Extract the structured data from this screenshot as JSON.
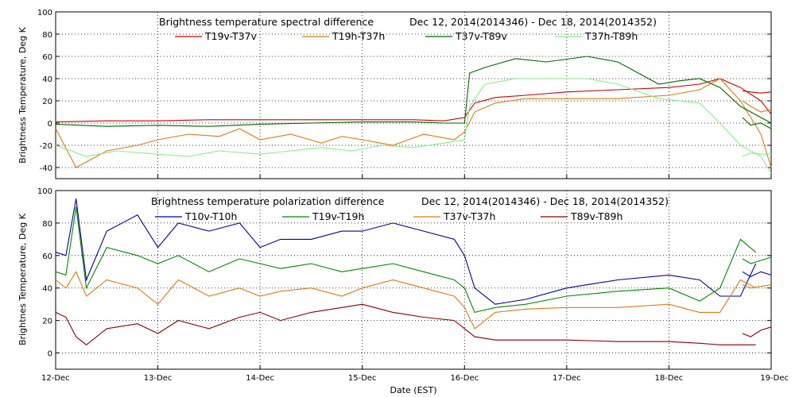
{
  "chart_data": [
    {
      "type": "line",
      "title": "Brightness temperature spectral difference",
      "date_range": "Dec 12, 2014(2014346)  - Dec 18, 2014(2014352)",
      "ylabel": "Brightness Temperature, Deg K",
      "xlabel": "",
      "xlim": [
        0,
        7
      ],
      "ylim": [
        -50,
        100
      ],
      "yticks": [
        -40,
        -20,
        0,
        20,
        40,
        60,
        80,
        100
      ],
      "grid": true,
      "legend_position": "top",
      "series": [
        {
          "name": "T19v-T37v",
          "color": "#cc0000",
          "x": [
            0,
            0.5,
            1,
            1.5,
            2,
            2.5,
            3,
            3.5,
            3.8,
            4.0,
            4.1,
            4.3,
            4.6,
            5.0,
            5.5,
            6.0,
            6.3,
            6.5,
            6.7,
            6.9,
            7.0
          ],
          "y": [
            1,
            2,
            2,
            3,
            3,
            3,
            3,
            3,
            2,
            5,
            18,
            23,
            25,
            28,
            30,
            32,
            35,
            40,
            32,
            20,
            8
          ],
          "x2": [
            6.72,
            6.8,
            6.9,
            7.0
          ],
          "y2": [
            29,
            28,
            27,
            28
          ]
        },
        {
          "name": "T19h-T37h",
          "color": "#e07a10",
          "x": [
            0,
            0.2,
            0.5,
            0.8,
            1,
            1.3,
            1.6,
            1.8,
            2,
            2.3,
            2.6,
            2.8,
            3.0,
            3.3,
            3.6,
            3.9,
            4.0,
            4.1,
            4.3,
            4.6,
            5.0,
            5.5,
            6.0,
            6.3,
            6.5,
            6.7,
            6.9,
            7.0
          ],
          "y": [
            -5,
            -40,
            -25,
            -20,
            -15,
            -10,
            -12,
            -5,
            -15,
            -10,
            -18,
            -12,
            -15,
            -20,
            -10,
            -15,
            -8,
            10,
            18,
            22,
            22,
            22,
            25,
            30,
            40,
            20,
            -10,
            -40
          ],
          "x2": [
            6.72,
            6.8,
            6.9,
            7.0
          ],
          "y2": [
            20,
            15,
            10,
            12
          ]
        },
        {
          "name": "T37v-T89v",
          "color": "#006600",
          "x": [
            0,
            0.5,
            1,
            1.5,
            2,
            2.5,
            3,
            3.5,
            3.8,
            4.0,
            4.05,
            4.2,
            4.5,
            4.8,
            5.2,
            5.5,
            5.9,
            6.1,
            6.3,
            6.5,
            6.7,
            6.9,
            7.0
          ],
          "y": [
            -1,
            -3,
            -2,
            -3,
            -1,
            0,
            1,
            1,
            0,
            0,
            45,
            50,
            58,
            55,
            60,
            55,
            35,
            38,
            40,
            32,
            15,
            5,
            0
          ],
          "x2": [
            6.72,
            6.8,
            6.9,
            7.0
          ],
          "y2": [
            5,
            -2,
            0,
            -5
          ]
        },
        {
          "name": "T37h-T89h",
          "color": "#88ee88",
          "x": [
            0,
            0.3,
            0.6,
            1.0,
            1.3,
            1.6,
            2.0,
            2.3,
            2.6,
            2.9,
            3.2,
            3.5,
            3.8,
            4.0,
            4.05,
            4.2,
            4.5,
            4.8,
            5.2,
            5.5,
            5.9,
            6.1,
            6.3,
            6.5,
            6.7,
            6.9,
            7.0
          ],
          "y": [
            -20,
            -30,
            -25,
            -28,
            -30,
            -25,
            -28,
            -25,
            -22,
            -25,
            -20,
            -22,
            -18,
            -15,
            15,
            35,
            40,
            40,
            40,
            35,
            22,
            20,
            18,
            0,
            -20,
            -30,
            -45
          ],
          "x2": [
            6.72,
            6.8,
            6.9,
            7.0
          ],
          "y2": [
            -30,
            -27,
            -28,
            -28
          ]
        }
      ]
    },
    {
      "type": "line",
      "title": "Brightness temperature polarization difference",
      "date_range": "Dec 12, 2014(2014346)  - Dec 18, 2014(2014352)",
      "ylabel": "Brightnes Temperature, Deg K",
      "xlabel": "Date (EST)",
      "xlim": [
        0,
        7
      ],
      "ylim": [
        -10,
        100
      ],
      "yticks": [
        0,
        20,
        40,
        60,
        80,
        100
      ],
      "xticks": [
        "12-Dec",
        "13-Dec",
        "14-Dec",
        "15-Dec",
        "16-Dec",
        "17-Dec",
        "18-Dec",
        "19-Dec"
      ],
      "grid": true,
      "legend_position": "top",
      "series": [
        {
          "name": "T10v-T10h",
          "color": "#000099",
          "x": [
            0,
            0.1,
            0.2,
            0.3,
            0.5,
            0.8,
            1.0,
            1.2,
            1.5,
            1.8,
            2.0,
            2.2,
            2.5,
            2.8,
            3.0,
            3.3,
            3.6,
            3.9,
            4.0,
            4.1,
            4.3,
            4.6,
            5.0,
            5.5,
            6.0,
            6.3,
            6.5,
            6.7,
            6.85
          ],
          "y": [
            62,
            60,
            95,
            45,
            75,
            85,
            65,
            80,
            75,
            80,
            65,
            70,
            70,
            75,
            75,
            80,
            75,
            70,
            60,
            40,
            30,
            33,
            40,
            45,
            48,
            45,
            35,
            35,
            55
          ],
          "x2": [
            6.72,
            6.8,
            6.9,
            7.0
          ],
          "y2": [
            50,
            47,
            50,
            48
          ]
        },
        {
          "name": "T19v-T19h",
          "color": "#008800",
          "x": [
            0,
            0.1,
            0.2,
            0.3,
            0.5,
            0.8,
            1.0,
            1.2,
            1.5,
            1.8,
            2.0,
            2.2,
            2.5,
            2.8,
            3.0,
            3.3,
            3.6,
            3.9,
            4.0,
            4.1,
            4.3,
            4.6,
            5.0,
            5.5,
            6.0,
            6.3,
            6.5,
            6.7,
            6.85
          ],
          "y": [
            50,
            48,
            90,
            40,
            65,
            60,
            55,
            60,
            50,
            58,
            55,
            52,
            55,
            50,
            52,
            55,
            50,
            45,
            40,
            25,
            28,
            30,
            35,
            38,
            40,
            32,
            40,
            70,
            62
          ],
          "x2": [
            6.72,
            6.8,
            6.9,
            7.0
          ],
          "y2": [
            58,
            55,
            57,
            59
          ]
        },
        {
          "name": "T37v-T37h",
          "color": "#e07a10",
          "x": [
            0,
            0.1,
            0.2,
            0.3,
            0.5,
            0.8,
            1.0,
            1.2,
            1.5,
            1.8,
            2.0,
            2.2,
            2.5,
            2.8,
            3.0,
            3.3,
            3.6,
            3.9,
            4.0,
            4.1,
            4.3,
            4.6,
            5.0,
            5.5,
            6.0,
            6.3,
            6.5,
            6.7,
            6.85
          ],
          "y": [
            45,
            40,
            50,
            35,
            45,
            40,
            30,
            45,
            35,
            40,
            35,
            38,
            40,
            35,
            40,
            45,
            40,
            35,
            28,
            15,
            25,
            27,
            28,
            28,
            30,
            25,
            25,
            45,
            40
          ],
          "x2": [
            6.72,
            6.8,
            6.9,
            7.0
          ],
          "y2": [
            42,
            40,
            41,
            42
          ]
        },
        {
          "name": "T89v-T89h",
          "color": "#880000",
          "x": [
            0,
            0.1,
            0.2,
            0.3,
            0.5,
            0.8,
            1.0,
            1.2,
            1.5,
            1.8,
            2.0,
            2.2,
            2.5,
            2.8,
            3.0,
            3.3,
            3.6,
            3.9,
            4.0,
            4.1,
            4.3,
            4.6,
            5.0,
            5.5,
            6.0,
            6.3,
            6.5,
            6.7,
            6.85
          ],
          "y": [
            25,
            22,
            10,
            5,
            15,
            18,
            12,
            20,
            15,
            22,
            25,
            20,
            25,
            28,
            30,
            25,
            22,
            20,
            15,
            10,
            8,
            8,
            8,
            7,
            7,
            6,
            5,
            5,
            5
          ],
          "x2": [
            6.72,
            6.8,
            6.9,
            7.0
          ],
          "y2": [
            12,
            10,
            14,
            16
          ]
        }
      ]
    }
  ]
}
